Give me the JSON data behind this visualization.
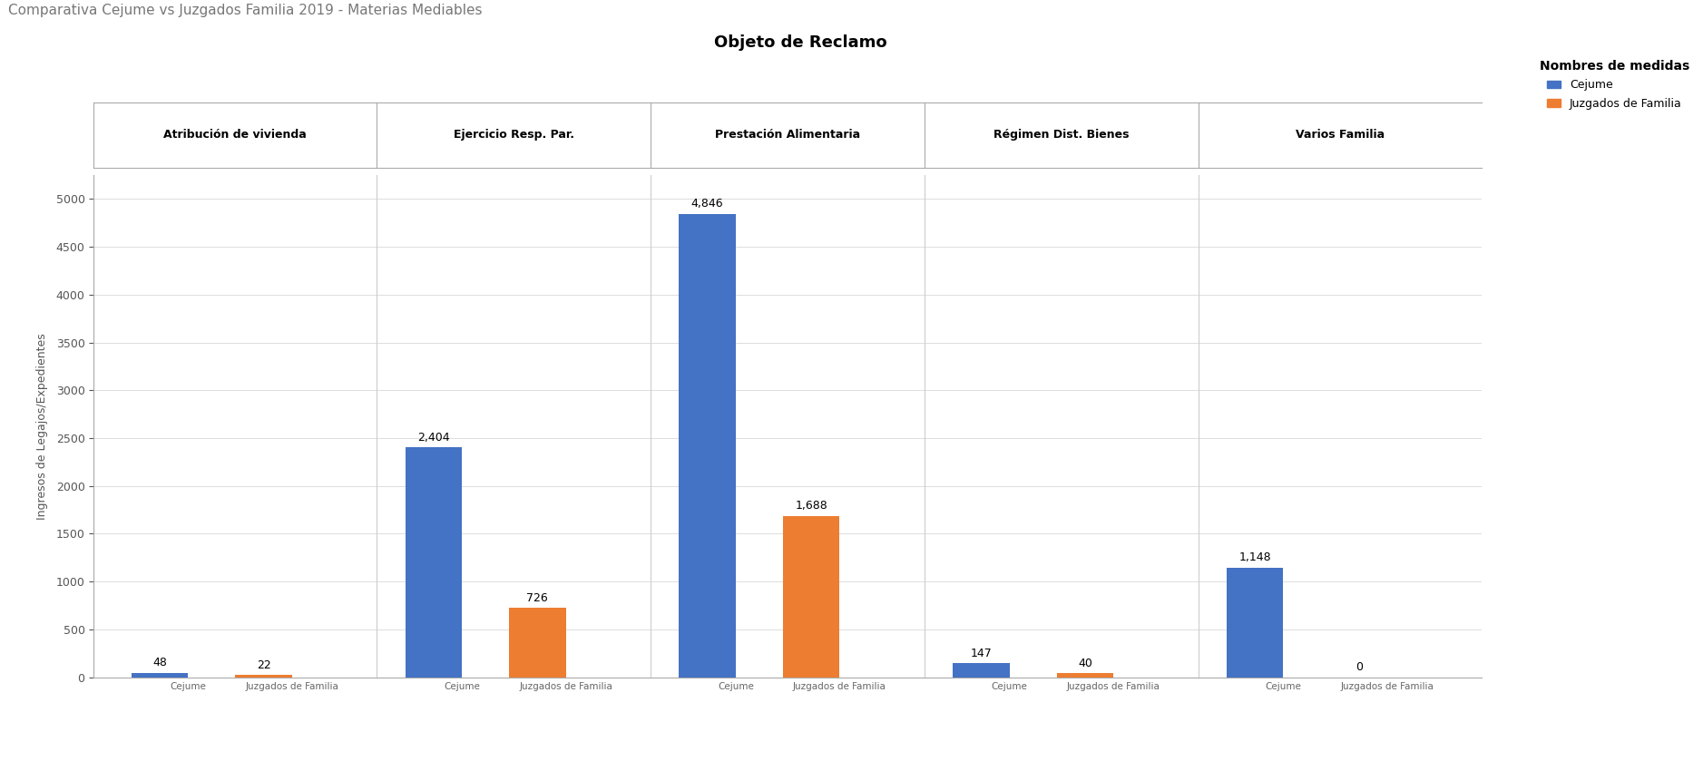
{
  "title": "Comparativa Cejume vs Juzgados Familia 2019 - Materias Mediables",
  "chart_title": "Objeto de Reclamo",
  "ylabel": "Ingresos de Legajos/Expedientes",
  "categories": [
    "Atribución de vivienda",
    "Ejercicio Resp. Par.",
    "Prestación Alimentaria",
    "Régimen Dist. Bienes",
    "Varios Familia"
  ],
  "cejume_values": [
    48,
    2404,
    4846,
    147,
    1148
  ],
  "juzgados_values": [
    22,
    726,
    1688,
    40,
    0
  ],
  "cejume_color": "#4472C4",
  "juzgados_color": "#ED7D31",
  "legend_title": "Nombres de medidas",
  "legend_labels": [
    "Cejume",
    "Juzgados de Familia"
  ],
  "ylim": [
    0,
    5250
  ],
  "yticks": [
    0,
    500,
    1000,
    1500,
    2000,
    2500,
    3000,
    3500,
    4000,
    4500,
    5000
  ],
  "background_color": "#FFFFFF",
  "title_fontsize": 11,
  "chart_title_fontsize": 13,
  "ylabel_fontsize": 9,
  "tick_fontsize": 9,
  "bar_label_fontsize": 9,
  "category_fontsize": 9,
  "xtick_fontsize": 7.5,
  "legend_fontsize": 9,
  "legend_title_fontsize": 10
}
